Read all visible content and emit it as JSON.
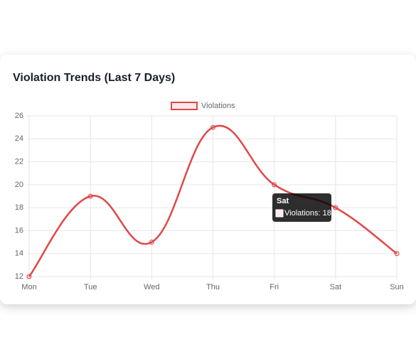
{
  "chart_data": {
    "type": "line",
    "title": "Violation Trends (Last 7 Days)",
    "categories": [
      "Mon",
      "Tue",
      "Wed",
      "Thu",
      "Fri",
      "Sat",
      "Sun"
    ],
    "series": [
      {
        "name": "Violations",
        "color": "#e04848",
        "values": [
          12,
          19,
          15,
          25,
          20,
          18,
          14
        ]
      }
    ],
    "ylim": [
      12,
      26
    ],
    "yticks": [
      12,
      14,
      16,
      18,
      20,
      22,
      24,
      26
    ],
    "grid": true,
    "legend": "top",
    "tooltip": {
      "title": "Sat",
      "label": "Violations: 18"
    }
  }
}
